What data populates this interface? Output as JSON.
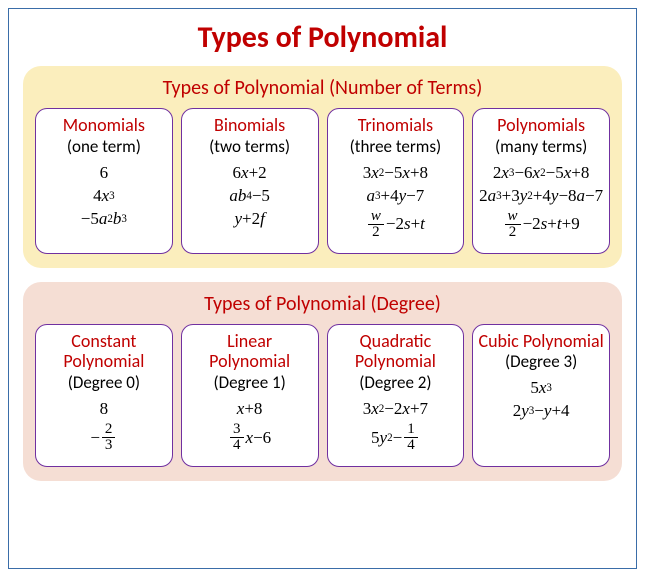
{
  "main_title": "Types of Polynomial",
  "colors": {
    "main_title": "#c00000",
    "section1_bg": "#fbeebd",
    "section1_title": "#c00000",
    "section2_bg": "#f5ded4",
    "section2_title": "#c00000",
    "card_border": "#7030a0",
    "card_title_color": "#c00000",
    "card_bg": "#ffffff"
  },
  "section1": {
    "title": "Types of Polynomial (Number of Terms)",
    "cards": [
      {
        "title": "Monomials",
        "subtitle": "(one term)",
        "examples_html": [
          "<span class='upright'>6</span>",
          "<span class='upright'>4</span>x<sup>3</sup>",
          "<span class='upright'>−5</span>a<sup>2</sup>b<sup>3</sup>"
        ]
      },
      {
        "title": "Binomials",
        "subtitle": "(two terms)",
        "examples_html": [
          "<span class='upright'>6</span>x<span class='upright'>+2</span>",
          "ab<sup>4</sup><span class='upright'>−5</span>",
          "y<span class='upright'>+2</span>f"
        ]
      },
      {
        "title": "Trinomials",
        "subtitle": "(three terms)",
        "examples_html": [
          "<span class='upright'>3</span>x<sup>2</sup><span class='upright'>−5</span>x<span class='upright'>+8</span>",
          "a<sup>3</sup><span class='upright'>+4</span>y<span class='upright'>−7</span>",
          "<span class='frac'><span class='num'>w</span><span class='den upright'>2</span></span><span class='upright'>−2</span>s<span class='upright'>+</span>t"
        ]
      },
      {
        "title": "Polynomials",
        "subtitle": "(many terms)",
        "examples_html": [
          "<span class='upright'>2</span>x<sup>3</sup><span class='upright'>−6</span>x<sup>2</sup><span class='upright'>−5</span>x<span class='upright'>+8</span>",
          "<span class='upright'>2</span>a<sup>3</sup><span class='upright'>+3</span>y<sup>2</sup><span class='upright'>+4</span>y<span class='upright'>−8</span>a<span class='upright'>−7</span>",
          "<span class='frac'><span class='num'>w</span><span class='den upright'>2</span></span><span class='upright'>−2</span>s<span class='upright'>+</span>t<span class='upright'>+9</span>"
        ]
      }
    ]
  },
  "section2": {
    "title": "Types of Polynomial (Degree)",
    "cards": [
      {
        "title": "Constant Polynomial",
        "subtitle": "(Degree 0)",
        "examples_html": [
          "<span class='upright'>8</span>",
          "<span class='upright'>−</span><span class='frac'><span class='num upright'>2</span><span class='den upright'>3</span></span>"
        ]
      },
      {
        "title": "Linear Polynomial",
        "subtitle": "(Degree 1)",
        "examples_html": [
          "x<span class='upright'>+8</span>",
          "<span class='frac'><span class='num upright'>3</span><span class='den upright'>4</span></span>x<span class='upright'>−6</span>"
        ]
      },
      {
        "title": "Quadratic Polynomial",
        "subtitle": "(Degree 2)",
        "examples_html": [
          "<span class='upright'>3</span>x<sup>2</sup><span class='upright'>−2</span>x<span class='upright'>+7</span>",
          "<span class='upright'>5</span>y<sup>2</sup><span class='upright'>−</span><span class='frac'><span class='num upright'>1</span><span class='den upright'>4</span></span>"
        ]
      },
      {
        "title": "Cubic Polynomial",
        "subtitle": "(Degree 3)",
        "examples_html": [
          "<span class='upright'>5</span>x<sup>3</sup>",
          "<span class='upright'>2</span>y<sup>3</sup><span class='upright'>−</span>y<span class='upright'>+4</span>"
        ]
      }
    ]
  }
}
